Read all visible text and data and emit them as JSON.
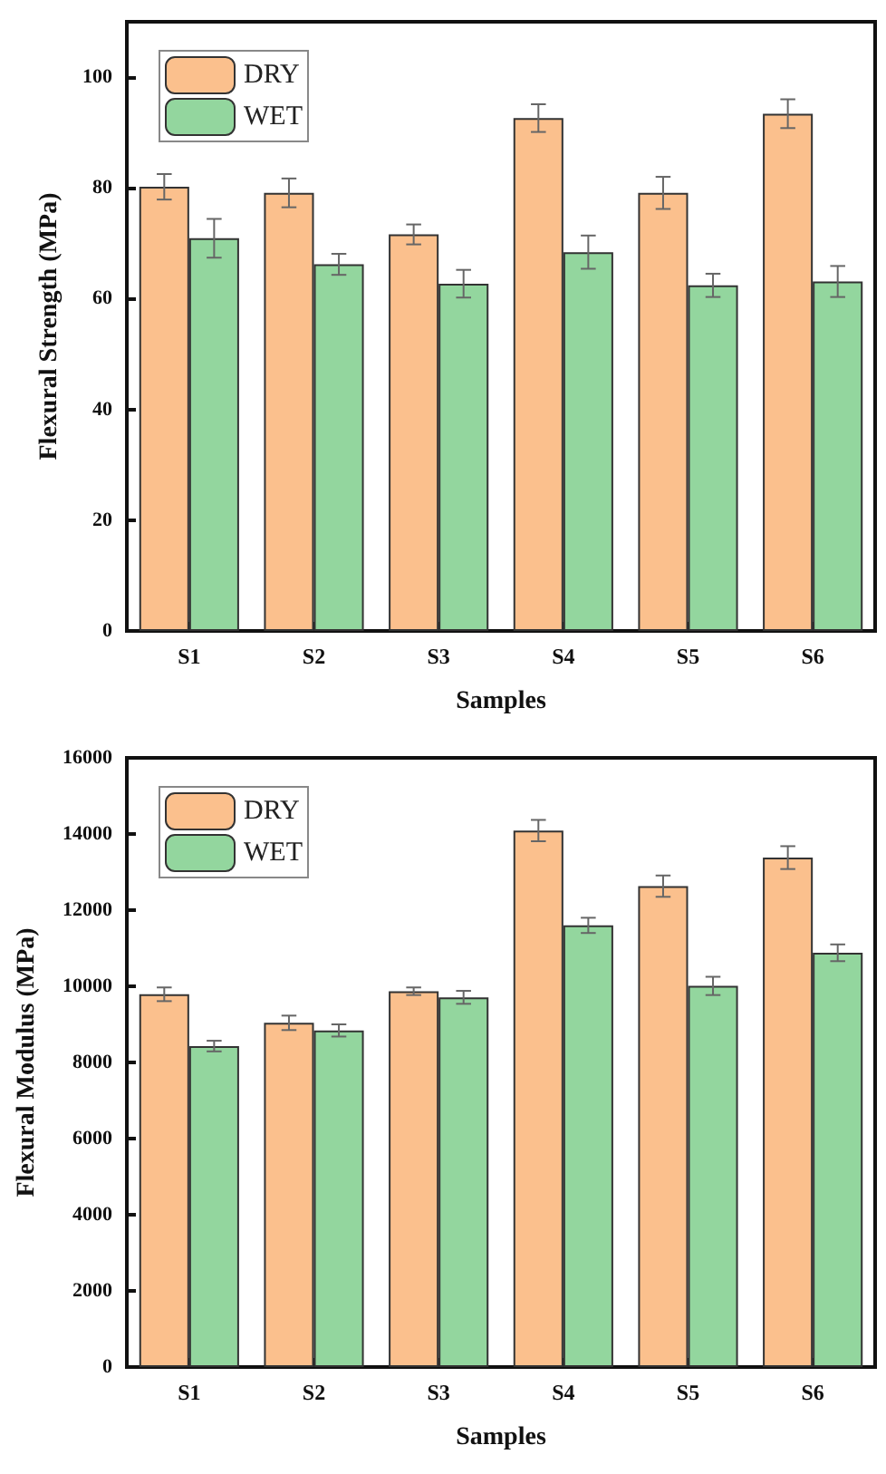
{
  "chart_data": [
    {
      "type": "bar",
      "xlabel": "Samples",
      "ylabel": "Flexural Strength (MPa)",
      "categories": [
        "S1",
        "S2",
        "S3",
        "S4",
        "S5",
        "S6"
      ],
      "series": [
        {
          "name": "DRY",
          "color": "#fbc08d",
          "values": [
            80.2,
            79.1,
            71.6,
            92.6,
            79.1,
            93.4
          ],
          "errors": [
            2.3,
            2.6,
            1.8,
            2.5,
            2.9,
            2.6
          ]
        },
        {
          "name": "WET",
          "color": "#93d69e",
          "values": [
            70.9,
            66.2,
            62.7,
            68.4,
            62.4,
            63.1
          ],
          "errors": [
            3.5,
            1.9,
            2.5,
            3.0,
            2.1,
            2.8
          ]
        }
      ],
      "ylim": [
        0,
        110
      ],
      "yticks": [
        0,
        20,
        40,
        60,
        80,
        100
      ],
      "legend": "top left"
    },
    {
      "type": "bar",
      "xlabel": "Samples",
      "ylabel": "Flexural Modulus (MPa)",
      "categories": [
        "S1",
        "S2",
        "S3",
        "S4",
        "S5",
        "S6"
      ],
      "series": [
        {
          "name": "DRY",
          "color": "#fbc08d",
          "values": [
            9790,
            9040,
            9870,
            14090,
            12630,
            13380
          ],
          "errors": [
            180,
            190,
            100,
            280,
            280,
            300
          ]
        },
        {
          "name": "WET",
          "color": "#93d69e",
          "values": [
            8430,
            8840,
            9710,
            11600,
            10010,
            10880
          ],
          "errors": [
            140,
            160,
            170,
            200,
            240,
            220
          ]
        }
      ],
      "ylim": [
        0,
        16000
      ],
      "yticks": [
        0,
        2000,
        4000,
        6000,
        8000,
        10000,
        12000,
        14000,
        16000
      ],
      "legend": "top left"
    }
  ]
}
